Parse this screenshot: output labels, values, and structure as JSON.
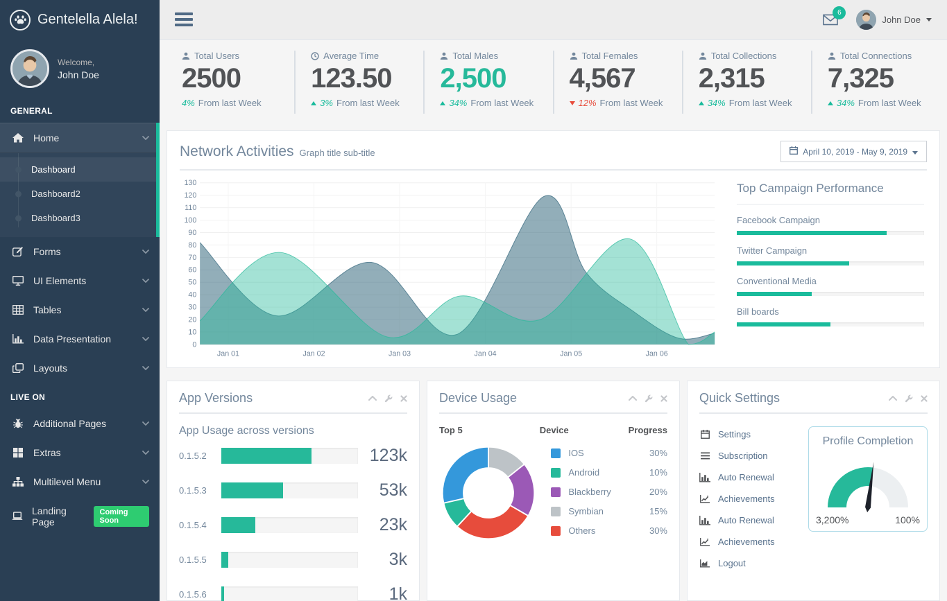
{
  "app": {
    "brand": "Gentelella Alela!"
  },
  "colors": {
    "accent": "#1ABB9C",
    "green": "#26B99A",
    "red": "#E74C3C",
    "sidebar_bg": "#2A3F54",
    "title_text": "#73879C",
    "value_text": "#515356",
    "blue": "#3498DB",
    "purple": "#9B59B6",
    "grey": "#BDC3C7"
  },
  "sidebar": {
    "welcome_label": "Welcome,",
    "user_name": "John Doe",
    "sections": [
      {
        "label": "GENERAL",
        "items": [
          {
            "label": "Home",
            "icon": "home-icon",
            "expanded": true,
            "children": [
              {
                "label": "Dashboard",
                "active": true
              },
              {
                "label": "Dashboard2"
              },
              {
                "label": "Dashboard3"
              }
            ]
          },
          {
            "label": "Forms",
            "icon": "edit-icon"
          },
          {
            "label": "UI Elements",
            "icon": "desktop-icon"
          },
          {
            "label": "Tables",
            "icon": "table-icon"
          },
          {
            "label": "Data Presentation",
            "icon": "bar-chart-icon"
          },
          {
            "label": "Layouts",
            "icon": "clone-icon"
          }
        ]
      },
      {
        "label": "LIVE ON",
        "items": [
          {
            "label": "Additional Pages",
            "icon": "bug-icon"
          },
          {
            "label": "Extras",
            "icon": "windows-icon"
          },
          {
            "label": "Multilevel Menu",
            "icon": "sitemap-icon"
          },
          {
            "label": "Landing Page",
            "icon": "laptop-icon",
            "badge": "Coming Soon"
          }
        ]
      }
    ]
  },
  "header": {
    "notification_count": "6",
    "user_name": "John Doe"
  },
  "tiles": [
    {
      "icon": "user-icon",
      "label": "Total Users",
      "value": "2500",
      "delta": "4%",
      "delta_dir": "none",
      "note": "From last Week",
      "green": false
    },
    {
      "icon": "clock-icon",
      "label": "Average Time",
      "value": "123.50",
      "delta": "3%",
      "delta_dir": "up",
      "note": "From last Week",
      "green": false
    },
    {
      "icon": "user-icon",
      "label": "Total Males",
      "value": "2,500",
      "delta": "34%",
      "delta_dir": "up",
      "note": "From last Week",
      "green": true
    },
    {
      "icon": "user-icon",
      "label": "Total Females",
      "value": "4,567",
      "delta": "12%",
      "delta_dir": "down",
      "note": "From last Week",
      "green": false
    },
    {
      "icon": "user-icon",
      "label": "Total Collections",
      "value": "2,315",
      "delta": "34%",
      "delta_dir": "up",
      "note": "From last Week",
      "green": false
    },
    {
      "icon": "user-icon",
      "label": "Total Connections",
      "value": "7,325",
      "delta": "34%",
      "delta_dir": "up",
      "note": "From last Week",
      "green": false
    }
  ],
  "network_panel": {
    "title": "Network Activities",
    "subtitle": "Graph title sub-title",
    "date_range": "April 10, 2019 - May 9, 2019"
  },
  "panels": {
    "app_versions": {
      "title": "App Versions"
    },
    "device_usage": {
      "title": "Device Usage",
      "columns": [
        "Top 5",
        "Device",
        "Progress"
      ]
    },
    "quick_settings": {
      "title": "Quick Settings",
      "items": [
        {
          "icon": "calendar-icon",
          "label": "Settings"
        },
        {
          "icon": "list-icon",
          "label": "Subscription"
        },
        {
          "icon": "bar-chart-icon",
          "label": "Auto Renewal"
        },
        {
          "icon": "line-chart-icon",
          "label": "Achievements"
        },
        {
          "icon": "bar-chart-icon",
          "label": "Auto Renewal"
        },
        {
          "icon": "line-chart-icon",
          "label": "Achievements"
        },
        {
          "icon": "area-chart-icon",
          "label": "Logout"
        }
      ]
    }
  },
  "panel_tools": [
    "chevron-up-icon",
    "wrench-icon",
    "close-icon"
  ],
  "chart_data": [
    {
      "id": "network_activities",
      "type": "area",
      "title": "Network Activities",
      "x_labels": [
        "Jan 01",
        "Jan 02",
        "Jan 03",
        "Jan 04",
        "Jan 05",
        "Jan 06"
      ],
      "x_positions": [
        0.055,
        0.2215,
        0.388,
        0.5545,
        0.721,
        0.8875
      ],
      "ylim": [
        0,
        130
      ],
      "ytick_step": 10,
      "grid": true,
      "series": [
        {
          "name": "series-steel",
          "fill": "rgba(57,107,128,0.55)",
          "line": "rgba(57,107,128,0.75)",
          "points": [
            [
              0,
              82
            ],
            [
              0.149,
              23
            ],
            [
              0.333,
              66
            ],
            [
              0.499,
              8
            ],
            [
              0.668,
              119
            ],
            [
              0.75,
              58
            ],
            [
              0.844,
              26
            ],
            [
              0.93,
              5
            ],
            [
              1,
              9
            ]
          ]
        },
        {
          "name": "series-mint",
          "fill": "rgba(38,185,154,0.42)",
          "line": "rgba(38,185,154,0.7)",
          "points": [
            [
              0,
              19
            ],
            [
              0.157,
              74
            ],
            [
              0.364,
              6
            ],
            [
              0.506,
              39
            ],
            [
              0.661,
              20
            ],
            [
              0.834,
              85
            ],
            [
              0.949,
              0
            ],
            [
              1,
              10
            ]
          ]
        }
      ]
    },
    {
      "id": "device_usage",
      "type": "donut",
      "labels": [
        "IOS",
        "Android",
        "Blackberry",
        "Symbian",
        "Others"
      ],
      "values": [
        30,
        10,
        20,
        15,
        30
      ],
      "value_labels": [
        "30%",
        "10%",
        "20%",
        "15%",
        "30%"
      ],
      "colors": [
        "#3498DB",
        "#26B99A",
        "#9B59B6",
        "#BDC3C7",
        "#E74C3C"
      ],
      "draw_order": [
        3,
        2,
        4,
        1,
        0
      ]
    },
    {
      "id": "profile_completion",
      "type": "gauge",
      "title": "Profile Completion",
      "fraction": 0.54,
      "min_label": "3,200%",
      "max_label": "100%",
      "fill_color": "#26B99A",
      "rest_color": "#ECEFF1"
    },
    {
      "id": "app_usage",
      "type": "bar",
      "title": "App Usage across versions",
      "categories": [
        "0.1.5.2",
        "0.1.5.3",
        "0.1.5.4",
        "0.1.5.5",
        "0.1.5.6"
      ],
      "value_labels": [
        "123k",
        "53k",
        "23k",
        "3k",
        "1k"
      ],
      "fractions": [
        0.66,
        0.45,
        0.25,
        0.05,
        0.02
      ]
    },
    {
      "id": "campaign_performance",
      "type": "bar",
      "title": "Top Campaign Performance",
      "categories": [
        "Facebook Campaign",
        "Twitter Campaign",
        "Conventional Media",
        "Bill boards"
      ],
      "fractions": [
        0.8,
        0.6,
        0.4,
        0.5
      ]
    }
  ]
}
